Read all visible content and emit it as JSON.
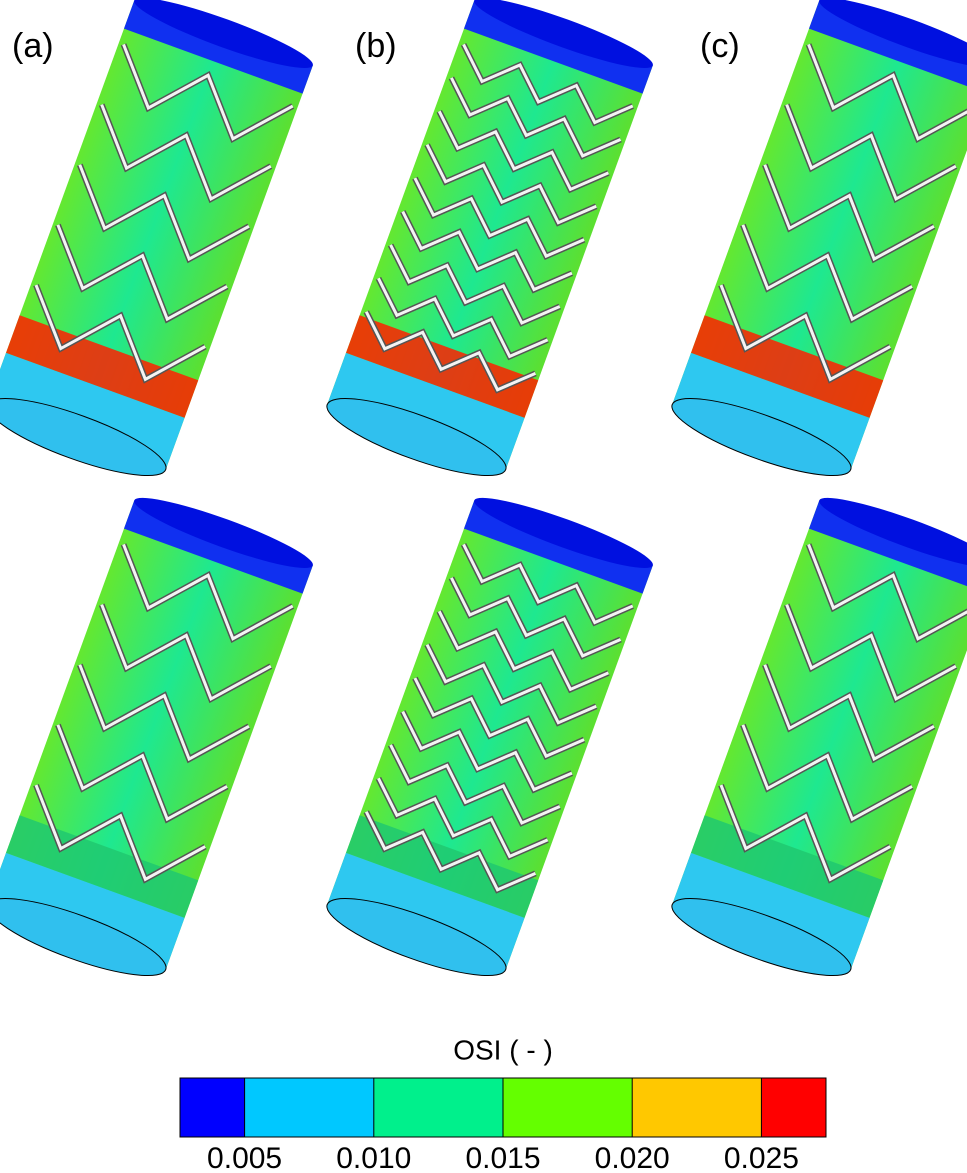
{
  "panels": [
    {
      "label": "(a)"
    },
    {
      "label": "(b)"
    },
    {
      "label": "(c)"
    }
  ],
  "colorbar": {
    "title": "OSI ( - )",
    "lim": [
      0.0025,
      0.0275
    ],
    "colors": [
      "#0000ff",
      "#00c8ff",
      "#00f08c",
      "#64ff00",
      "#ffc800",
      "#ff0000"
    ],
    "ticks": [
      0.005,
      {
        "value": 0.01,
        "label": "0.010"
      },
      0.015,
      {
        "value": 0.02,
        "label": "0.020"
      },
      0.025
    ]
  }
}
